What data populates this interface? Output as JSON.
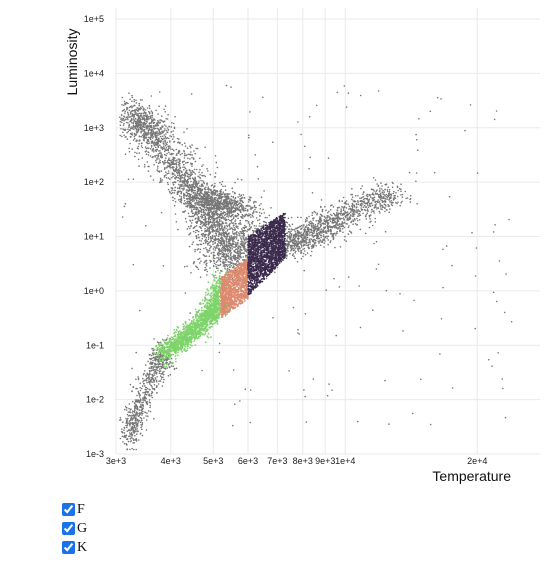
{
  "chart_data": {
    "type": "scatter",
    "xlabel": "Temperature",
    "ylabel": "Luminosity",
    "x_scale": "log",
    "y_scale": "log",
    "xlim": [
      3000,
      24000
    ],
    "ylim": [
      0.001,
      100000
    ],
    "grid": true,
    "x_ticks": [
      {
        "value": 3000,
        "label": "3e+3"
      },
      {
        "value": 4000,
        "label": "4e+3"
      },
      {
        "value": 5000,
        "label": "5e+3"
      },
      {
        "value": 6000,
        "label": "6e+3"
      },
      {
        "value": 7000,
        "label": "7e+3"
      },
      {
        "value": 8000,
        "label": "8e+3"
      },
      {
        "value": 9000,
        "label": "9e+3"
      },
      {
        "value": 10000,
        "label": "1e+4"
      },
      {
        "value": 20000,
        "label": "2e+4"
      }
    ],
    "y_ticks": [
      {
        "value": 0.001,
        "label": "1e-3"
      },
      {
        "value": 0.01,
        "label": "1e-2"
      },
      {
        "value": 0.1,
        "label": "1e-1"
      },
      {
        "value": 1,
        "label": "1e+0"
      },
      {
        "value": 10,
        "label": "1e+1"
      },
      {
        "value": 100,
        "label": "1e+2"
      },
      {
        "value": 1000,
        "label": "1e+3"
      },
      {
        "value": 10000,
        "label": "1e+4"
      },
      {
        "value": 100000,
        "label": "1e+5"
      }
    ],
    "colors": {
      "other": "#777777",
      "F": "#3b2a4e",
      "G": "#de8a6f",
      "K": "#7fd46b"
    },
    "series": [
      {
        "name": "F",
        "temp_range": [
          6000,
          7300
        ],
        "luminosity_range": [
          0.8,
          30
        ]
      },
      {
        "name": "G",
        "temp_range": [
          5200,
          6000
        ],
        "luminosity_range": [
          0.3,
          3
        ]
      },
      {
        "name": "K",
        "temp_range": [
          3850,
          5200
        ],
        "luminosity_range": [
          0.06,
          2
        ]
      }
    ]
  },
  "legend": {
    "items": [
      {
        "label": "F",
        "checked": true
      },
      {
        "label": "G",
        "checked": true
      },
      {
        "label": "K",
        "checked": true
      }
    ]
  }
}
